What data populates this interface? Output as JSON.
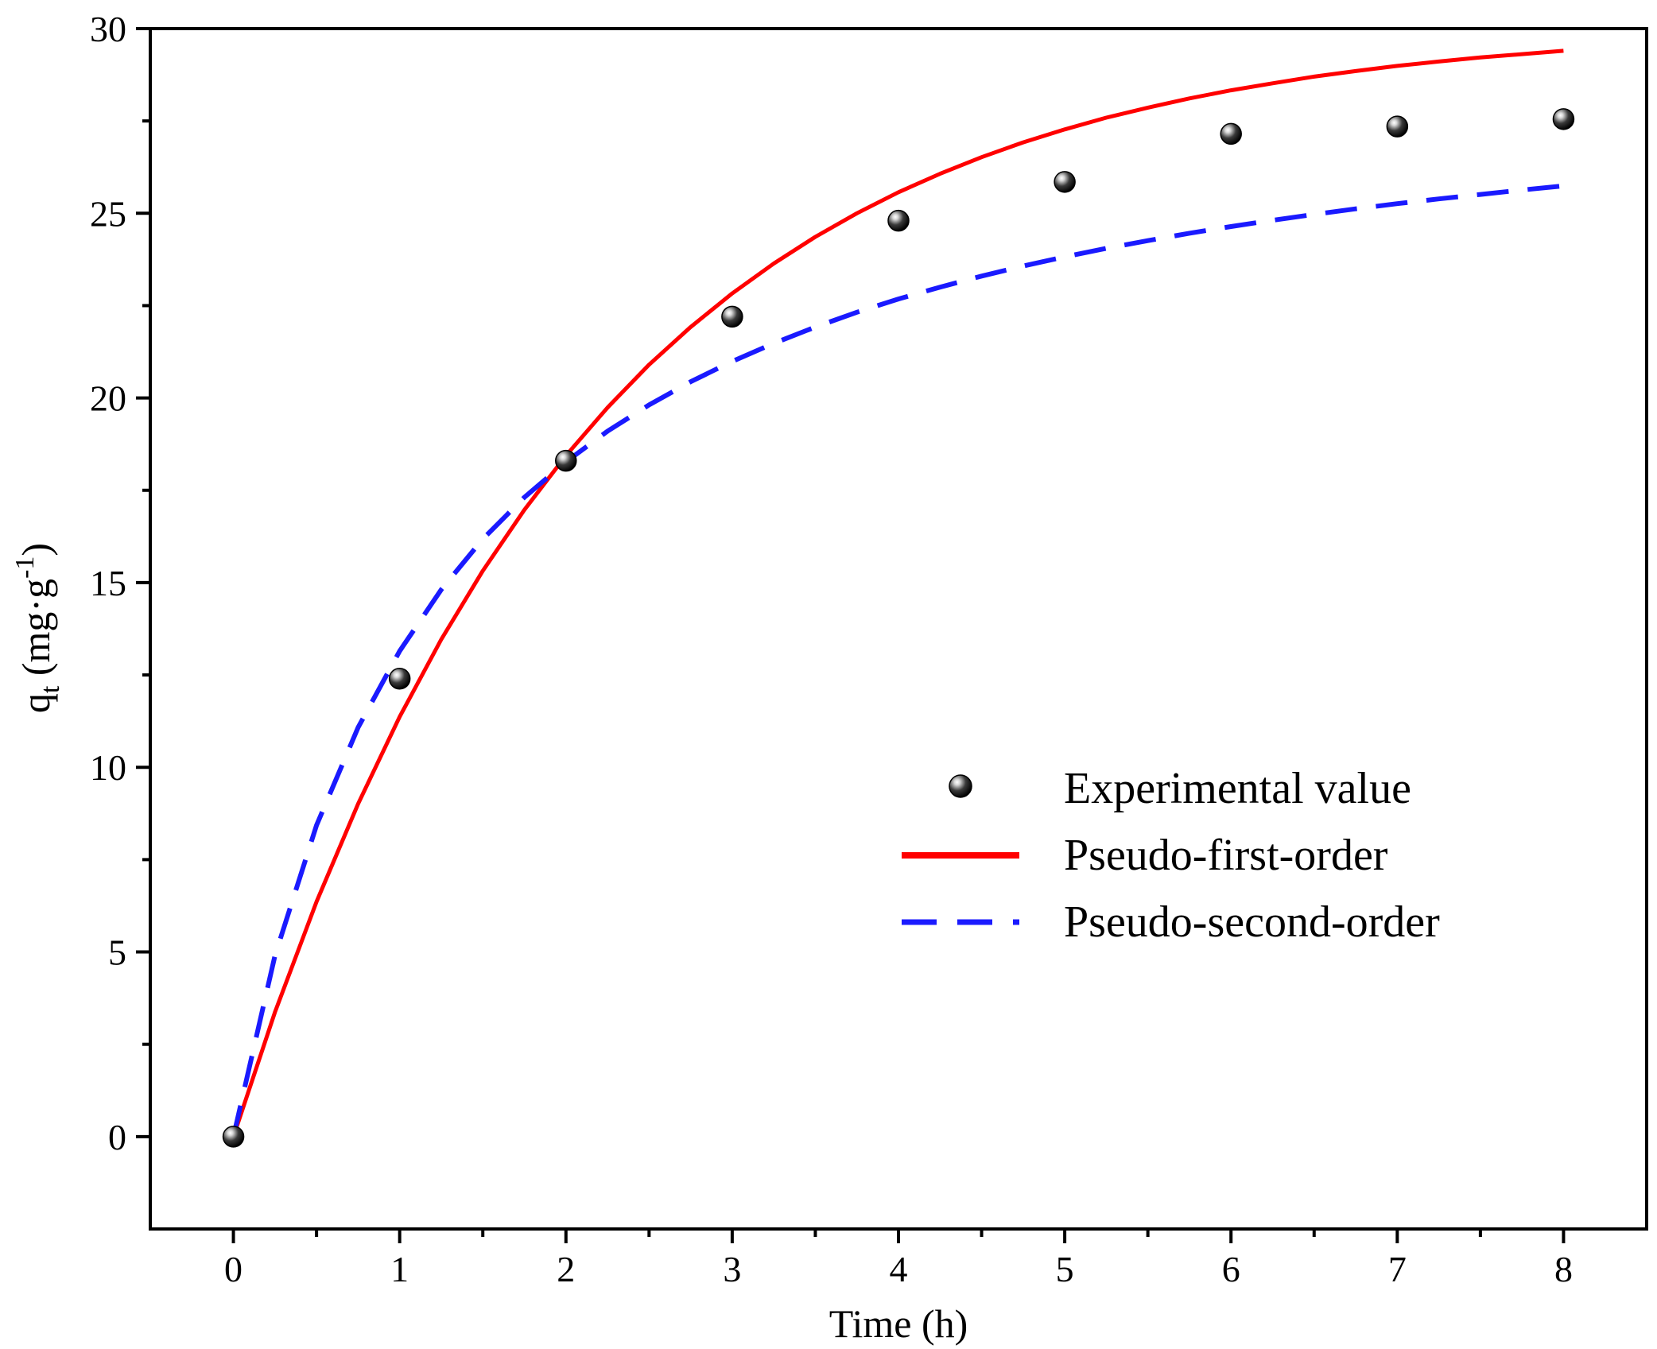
{
  "chart_data": {
    "type": "scatter",
    "title": "",
    "xlabel": "Time (h)",
    "ylabel": {
      "base": "q",
      "subscript": "t",
      "unit_open": " (mg·g",
      "unit_superscript": "-1",
      "unit_close": ")"
    },
    "xlim": [
      -0.5,
      8.5
    ],
    "ylim": [
      -2.5,
      30
    ],
    "x_ticks": [
      0,
      1,
      2,
      3,
      4,
      5,
      6,
      7,
      8
    ],
    "y_ticks": [
      0,
      5,
      10,
      15,
      20,
      25,
      30
    ],
    "x_tick_labels": [
      "0",
      "1",
      "2",
      "3",
      "4",
      "5",
      "6",
      "7",
      "8"
    ],
    "y_tick_labels": [
      "0",
      "5",
      "10",
      "15",
      "20",
      "25",
      "30"
    ],
    "grid": false,
    "legend_position": "center-right",
    "series": [
      {
        "name": "Experimental value",
        "kind": "scatter",
        "color": "#1a1a1a",
        "x": [
          0,
          1,
          2,
          3,
          4,
          5,
          6,
          7,
          8
        ],
        "y": [
          0,
          12.4,
          18.3,
          22.2,
          24.8,
          25.85,
          27.15,
          27.35,
          27.55
        ]
      },
      {
        "name": "Pseudo-first-order",
        "kind": "line",
        "style": "solid",
        "color": "#ff0000",
        "x": [
          0,
          0.25,
          0.5,
          0.75,
          1,
          1.25,
          1.5,
          1.75,
          2,
          2.25,
          2.5,
          2.75,
          3,
          3.25,
          3.5,
          3.75,
          4,
          4.25,
          4.5,
          4.75,
          5,
          5.25,
          5.5,
          5.75,
          6,
          6.25,
          6.5,
          6.75,
          7,
          7.25,
          7.5,
          7.75,
          8
        ],
        "y": [
          0,
          3.37,
          6.36,
          9.01,
          11.37,
          13.46,
          15.32,
          16.97,
          18.44,
          19.74,
          20.9,
          21.92,
          22.83,
          23.64,
          24.36,
          25.0,
          25.57,
          26.07,
          26.52,
          26.92,
          27.27,
          27.59,
          27.86,
          28.11,
          28.33,
          28.52,
          28.7,
          28.85,
          28.99,
          29.11,
          29.22,
          29.31,
          29.4
        ]
      },
      {
        "name": "Pseudo-second-order",
        "kind": "line",
        "style": "dashed",
        "color": "#1a1aff",
        "x": [
          0,
          0.25,
          0.5,
          0.75,
          1,
          1.25,
          1.5,
          1.75,
          2,
          2.25,
          2.5,
          2.75,
          3,
          3.25,
          3.5,
          3.75,
          4,
          4.25,
          4.5,
          4.75,
          5,
          5.25,
          5.5,
          5.75,
          6,
          6.25,
          6.5,
          6.75,
          7,
          7.25,
          7.5,
          7.75,
          8
        ],
        "y": [
          0,
          4.9,
          8.43,
          11.08,
          13.15,
          14.81,
          16.18,
          17.31,
          18.27,
          19.1,
          19.81,
          20.44,
          20.99,
          21.48,
          21.92,
          22.32,
          22.68,
          23.0,
          23.3,
          23.57,
          23.82,
          24.05,
          24.26,
          24.46,
          24.64,
          24.81,
          24.97,
          25.12,
          25.26,
          25.39,
          25.51,
          25.63,
          25.74
        ]
      }
    ]
  }
}
